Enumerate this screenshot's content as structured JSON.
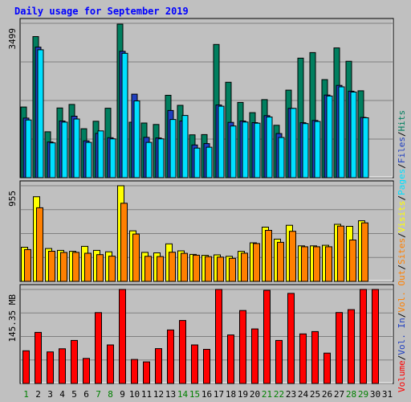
{
  "chart_data": {
    "type": "bar",
    "title": "Daily usage for September 2019",
    "categories": [
      "1",
      "2",
      "3",
      "4",
      "5",
      "6",
      "7",
      "8",
      "9",
      "10",
      "11",
      "12",
      "13",
      "14",
      "15",
      "16",
      "17",
      "18",
      "19",
      "20",
      "21",
      "22",
      "23",
      "24",
      "25",
      "26",
      "27",
      "28",
      "29",
      "30",
      "31"
    ],
    "weekend_days": [
      "1",
      "7",
      "8",
      "14",
      "15",
      "21",
      "22",
      "28",
      "29"
    ],
    "panels": [
      {
        "id": "requests",
        "ymax": 3499,
        "ymax_label": "3499",
        "series": [
          {
            "name": "Hits",
            "color": "#007f5f",
            "values": [
              1601,
              3199,
              1041,
              1580,
              1660,
              1110,
              1280,
              1575,
              3480,
              1257,
              1240,
              1207,
              1868,
              1640,
              971,
              977,
              3019,
              2163,
              1705,
              1475,
              1770,
              1188,
              1985,
              2709,
              2835,
              2224,
              2942,
              2638,
              1970
            ]
          },
          {
            "name": "Files",
            "color": "#1f3fc0",
            "values": [
              1350,
              2960,
              810,
              1285,
              1395,
              835,
              1005,
              905,
              2865,
              1893,
              915,
              900,
              1524,
              1285,
              741,
              772,
              1648,
              1254,
              1285,
              1248,
              1406,
              1000,
              1571,
              1247,
              1297,
              1874,
              2093,
              1960,
              1367
            ]
          },
          {
            "name": "Pages",
            "color": "#00e0ff",
            "values": [
              1309,
              2900,
              790,
              1260,
              1330,
              800,
              1060,
              880,
              2820,
              1740,
              800,
              880,
              1320,
              1410,
              670,
              690,
              1620,
              1171,
              1262,
              1235,
              1376,
              911,
              1571,
              1227,
              1274,
              1851,
              2060,
              1940,
              1357
            ]
          }
        ]
      },
      {
        "id": "visits",
        "ymax": 955,
        "ymax_label": "955",
        "series": [
          {
            "name": "Visits",
            "color": "#ffff00",
            "values": [
              341,
              845,
              328,
              310,
              300,
              350,
              310,
              295,
              960,
              505,
              290,
              285,
              375,
              305,
              270,
              260,
              265,
              250,
              300,
              385,
              542,
              422,
              560,
              355,
              355,
              360,
              570,
              550,
              605
            ]
          },
          {
            "name": "Sites",
            "color": "#ff8000",
            "values": [
              318,
              735,
              301,
              289,
              290,
              281,
              267,
              252,
              780,
              473,
              250,
              248,
              291,
              280,
              262,
              247,
              242,
              230,
              282,
              378,
              510,
              390,
              500,
              346,
              346,
              346,
              552,
              413,
              584
            ]
          }
        ]
      },
      {
        "id": "kbytes",
        "ymax": 145.35,
        "ymax_label": "145.35 MB",
        "series": [
          {
            "name": "Volume",
            "color": "#ff0000",
            "values": [
              50.5,
              79.0,
              48.8,
              53.7,
              66.6,
              38.7,
              109.6,
              59.6,
              151.4,
              37.1,
              33.4,
              53.9,
              82.7,
              97.4,
              59.6,
              52.8,
              158.9,
              75.0,
              112.8,
              84.3,
              144.0,
              66.6,
              139.3,
              76.6,
              80.2,
              46.9,
              109.7,
              114.2,
              151.6,
              157.2
            ]
          }
        ]
      }
    ],
    "side_legend": [
      {
        "label": "Hits",
        "color": "#007f5f"
      },
      {
        "label": "/",
        "color": "#000000"
      },
      {
        "label": "Files",
        "color": "#1f3fc0"
      },
      {
        "label": "/",
        "color": "#000000"
      },
      {
        "label": "Pages",
        "color": "#00e0ff"
      },
      {
        "label": "/",
        "color": "#000000"
      },
      {
        "label": "Visits",
        "color": "#ffff00"
      },
      {
        "label": "/",
        "color": "#000000"
      },
      {
        "label": "Sites",
        "color": "#ff8000"
      },
      {
        "label": "/",
        "color": "#000000"
      },
      {
        "label": "Vol. Out",
        "color": "#ff8000"
      },
      {
        "label": "/",
        "color": "#000000"
      },
      {
        "label": "Vol. In",
        "color": "#1f3fc0"
      },
      {
        "label": "/",
        "color": "#000000"
      },
      {
        "label": "Volume",
        "color": "#ff0000"
      }
    ],
    "colors": {
      "background": "#c0c0c0",
      "title": "#0000ff",
      "weekday_label": "#000000",
      "weekend_label": "#008000",
      "grid": "#808080"
    }
  }
}
